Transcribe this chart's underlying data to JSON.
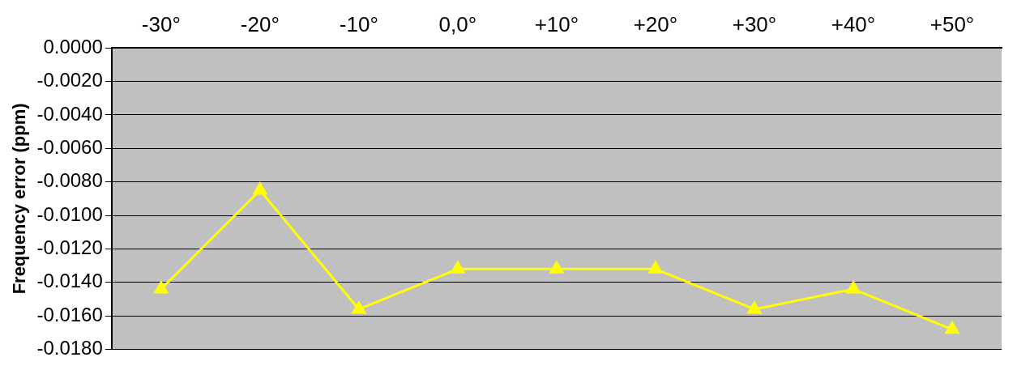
{
  "chart_data": {
    "type": "line",
    "ylabel": "Frequency error (ppm)",
    "categories": [
      "-30°",
      "-20°",
      "-10°",
      "0,0°",
      "+10°",
      "+20°",
      "+30°",
      "+40°",
      "+50°"
    ],
    "series": [
      {
        "color": "#ffff00",
        "values": [
          -0.0144,
          -0.0085,
          -0.0156,
          -0.0132,
          -0.0132,
          -0.0132,
          -0.0156,
          -0.0144,
          -0.0168
        ]
      }
    ],
    "ylim": [
      -0.018,
      0
    ],
    "yticks": [
      {
        "value": 0,
        "label": "0.0000"
      },
      {
        "value": -0.002,
        "label": "-0.0020"
      },
      {
        "value": -0.004,
        "label": "-0.0040"
      },
      {
        "value": -0.006,
        "label": "-0.0060"
      },
      {
        "value": -0.008,
        "label": "-0.0080"
      },
      {
        "value": -0.01,
        "label": "-0.0100"
      },
      {
        "value": -0.012,
        "label": "-0.0120"
      },
      {
        "value": -0.014,
        "label": "-0.0140"
      },
      {
        "value": -0.016,
        "label": "-0.0160"
      },
      {
        "value": -0.018,
        "label": "-0.0180"
      }
    ],
    "grid": "y",
    "legend": false,
    "marker": "triangle",
    "line_style": "solid"
  }
}
